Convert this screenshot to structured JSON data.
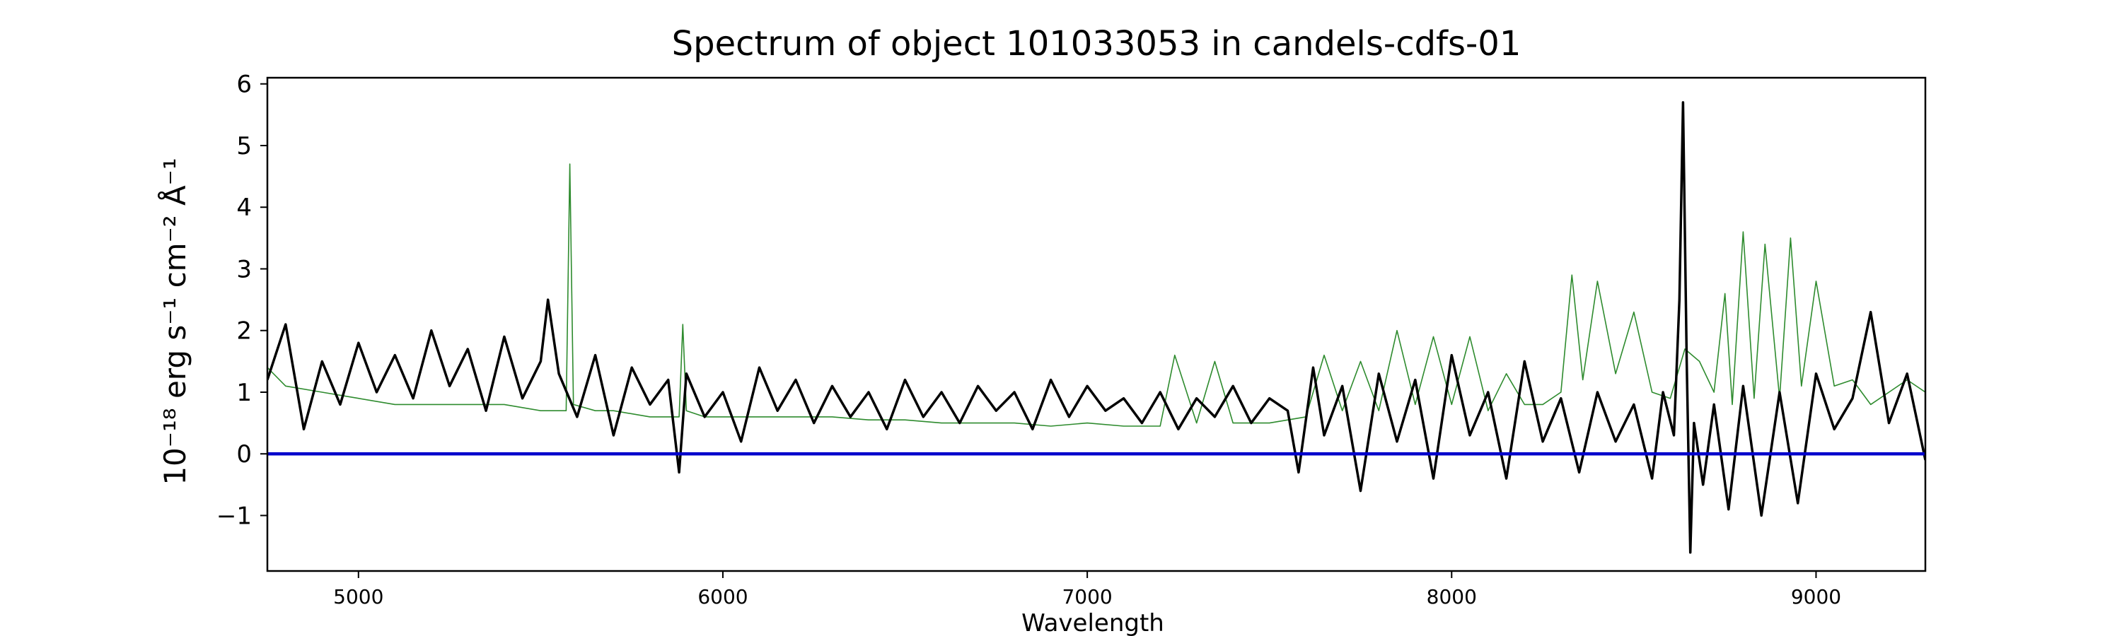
{
  "chart_data": {
    "type": "line",
    "title": "Spectrum of object 101033053 in candels-cdfs-01",
    "xlabel": "Wavelength",
    "ylabel": "10⁻¹⁸ erg s⁻¹ cm⁻² Å⁻¹",
    "xlim": [
      4750,
      9300
    ],
    "ylim": [
      -1.9,
      6.1
    ],
    "x_ticks": [
      5000,
      6000,
      7000,
      8000,
      9000
    ],
    "x_tick_labels": [
      "5000",
      "6000",
      "7000",
      "8000",
      "9000"
    ],
    "y_ticks": [
      -1,
      0,
      1,
      2,
      3,
      4,
      5,
      6
    ],
    "y_tick_labels": [
      "−1",
      "0",
      "1",
      "2",
      "3",
      "4",
      "5",
      "6"
    ],
    "grid": false,
    "series": [
      {
        "color": "#000000",
        "x": [
          4750,
          4800,
          4850,
          4900,
          4950,
          5000,
          5050,
          5100,
          5150,
          5200,
          5250,
          5300,
          5350,
          5400,
          5450,
          5500,
          5520,
          5550,
          5600,
          5650,
          5700,
          5750,
          5800,
          5850,
          5880,
          5900,
          5950,
          6000,
          6050,
          6100,
          6150,
          6200,
          6250,
          6300,
          6350,
          6400,
          6450,
          6500,
          6550,
          6600,
          6650,
          6700,
          6750,
          6800,
          6850,
          6900,
          6950,
          7000,
          7050,
          7100,
          7150,
          7200,
          7250,
          7300,
          7350,
          7400,
          7450,
          7500,
          7550,
          7580,
          7620,
          7650,
          7700,
          7750,
          7800,
          7850,
          7900,
          7950,
          8000,
          8050,
          8100,
          8150,
          8200,
          8250,
          8300,
          8350,
          8400,
          8450,
          8500,
          8550,
          8580,
          8610,
          8625,
          8635,
          8645,
          8655,
          8665,
          8690,
          8720,
          8760,
          8800,
          8850,
          8900,
          8950,
          9000,
          9050,
          9100,
          9150,
          9200,
          9250,
          9300
        ],
        "y": [
          1.2,
          2.1,
          0.4,
          1.5,
          0.8,
          1.8,
          1.0,
          1.6,
          0.9,
          2.0,
          1.1,
          1.7,
          0.7,
          1.9,
          0.9,
          1.5,
          2.5,
          1.3,
          0.6,
          1.6,
          0.3,
          1.4,
          0.8,
          1.2,
          -0.3,
          1.3,
          0.6,
          1.0,
          0.2,
          1.4,
          0.7,
          1.2,
          0.5,
          1.1,
          0.6,
          1.0,
          0.4,
          1.2,
          0.6,
          1.0,
          0.5,
          1.1,
          0.7,
          1.0,
          0.4,
          1.2,
          0.6,
          1.1,
          0.7,
          0.9,
          0.5,
          1.0,
          0.4,
          0.9,
          0.6,
          1.1,
          0.5,
          0.9,
          0.7,
          -0.3,
          1.4,
          0.3,
          1.1,
          -0.6,
          1.3,
          0.2,
          1.2,
          -0.4,
          1.6,
          0.3,
          1.0,
          -0.4,
          1.5,
          0.2,
          0.9,
          -0.3,
          1.0,
          0.2,
          0.8,
          -0.4,
          1.0,
          0.3,
          2.5,
          5.7,
          1.5,
          -1.6,
          0.5,
          -0.5,
          0.8,
          -0.9,
          1.1,
          -1.0,
          1.0,
          -0.8,
          1.3,
          0.4,
          0.9,
          2.3,
          0.5,
          1.3,
          -0.1
        ]
      },
      {
        "color": "#2e8b2e",
        "x": [
          4750,
          4800,
          4900,
          5000,
          5100,
          5200,
          5300,
          5400,
          5500,
          5570,
          5580,
          5590,
          5650,
          5700,
          5800,
          5880,
          5890,
          5900,
          5950,
          6000,
          6100,
          6200,
          6300,
          6400,
          6500,
          6600,
          6700,
          6800,
          6900,
          7000,
          7100,
          7200,
          7240,
          7300,
          7350,
          7400,
          7500,
          7600,
          7650,
          7700,
          7750,
          7800,
          7850,
          7900,
          7950,
          8000,
          8050,
          8100,
          8150,
          8200,
          8250,
          8300,
          8330,
          8360,
          8400,
          8450,
          8500,
          8550,
          8600,
          8640,
          8680,
          8720,
          8750,
          8770,
          8800,
          8830,
          8860,
          8900,
          8930,
          8960,
          9000,
          9050,
          9100,
          9150,
          9200,
          9250,
          9300
        ],
        "y": [
          1.4,
          1.1,
          1.0,
          0.9,
          0.8,
          0.8,
          0.8,
          0.8,
          0.7,
          0.7,
          4.7,
          0.8,
          0.7,
          0.7,
          0.6,
          0.6,
          2.1,
          0.7,
          0.6,
          0.6,
          0.6,
          0.6,
          0.6,
          0.55,
          0.55,
          0.5,
          0.5,
          0.5,
          0.45,
          0.5,
          0.45,
          0.45,
          1.6,
          0.5,
          1.5,
          0.5,
          0.5,
          0.6,
          1.6,
          0.7,
          1.5,
          0.7,
          2.0,
          0.8,
          1.9,
          0.8,
          1.9,
          0.7,
          1.3,
          0.8,
          0.8,
          1.0,
          2.9,
          1.2,
          2.8,
          1.3,
          2.3,
          1.0,
          0.9,
          1.7,
          1.5,
          1.0,
          2.6,
          0.8,
          3.6,
          0.9,
          3.4,
          0.9,
          3.5,
          1.1,
          2.8,
          1.1,
          1.2,
          0.8,
          1.0,
          1.2,
          1.0
        ]
      },
      {
        "color": "#0000cc",
        "x": [
          4750,
          9300
        ],
        "y": [
          0,
          0
        ]
      }
    ]
  }
}
